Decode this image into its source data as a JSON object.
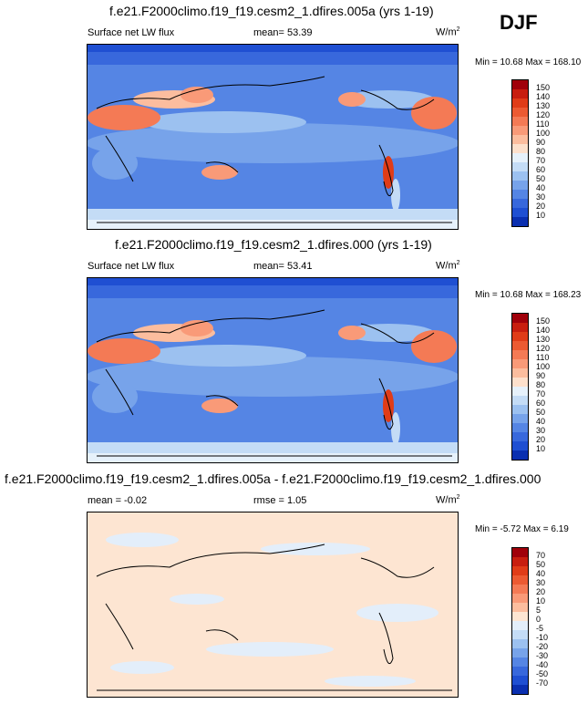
{
  "season": "DJF",
  "panels": [
    {
      "title": "f.e21.F2000climo.f19_f19.cesm2_1.dfires.005a (yrs 1-19)",
      "left_label": "Surface net LW flux",
      "mid_label": "mean=  53.39",
      "units": "W/m",
      "units_sup": "2",
      "minmax": "Min =  10.68 Max = 168.10",
      "colorbar_ticks": [
        "150",
        "140",
        "130",
        "120",
        "110",
        "100",
        "90",
        "80",
        "70",
        "60",
        "50",
        "40",
        "30",
        "20",
        "10"
      ],
      "colorbar_colors": [
        "#a0000a",
        "#c81e0f",
        "#e03c18",
        "#ec5a32",
        "#f47a55",
        "#f99a78",
        "#fcbd9e",
        "#fde0cc",
        "#e6f1fb",
        "#c4dcf6",
        "#9cc1f0",
        "#77a3ea",
        "#5585e4",
        "#3868dc",
        "#1f4fd2",
        "#0a2fb0"
      ]
    },
    {
      "title": "f.e21.F2000climo.f19_f19.cesm2_1.dfires.000 (yrs 1-19)",
      "left_label": "Surface net LW flux",
      "mid_label": "mean=  53.41",
      "units": "W/m",
      "units_sup": "2",
      "minmax": "Min =  10.68 Max = 168.23",
      "colorbar_ticks": [
        "150",
        "140",
        "130",
        "120",
        "110",
        "100",
        "90",
        "80",
        "70",
        "60",
        "50",
        "40",
        "30",
        "20",
        "10"
      ],
      "colorbar_colors": [
        "#a0000a",
        "#c81e0f",
        "#e03c18",
        "#ec5a32",
        "#f47a55",
        "#f99a78",
        "#fcbd9e",
        "#fde0cc",
        "#e6f1fb",
        "#c4dcf6",
        "#9cc1f0",
        "#77a3ea",
        "#5585e4",
        "#3868dc",
        "#1f4fd2",
        "#0a2fb0"
      ]
    },
    {
      "title": "f.e21.F2000climo.f19_f19.cesm2_1.dfires.005a - f.e21.F2000climo.f19_f19.cesm2_1.dfires.000",
      "left_label": "mean =  -0.02",
      "mid_label": "rmse =   1.05",
      "units": "W/m",
      "units_sup": "2",
      "minmax": "Min =  -5.72 Max =   6.19",
      "colorbar_ticks": [
        "70",
        "50",
        "40",
        "30",
        "20",
        "10",
        "5",
        "0",
        "-5",
        "-10",
        "-20",
        "-30",
        "-40",
        "-50",
        "-70"
      ],
      "colorbar_colors": [
        "#a0000a",
        "#c81e0f",
        "#e03c18",
        "#ec5a32",
        "#f47a55",
        "#f99a78",
        "#fcbd9e",
        "#fde5d2",
        "#e3eefa",
        "#c4dcf6",
        "#9cc1f0",
        "#77a3ea",
        "#5585e4",
        "#3868dc",
        "#1f4fd2",
        "#0a2fb0"
      ]
    }
  ],
  "chart_data": [
    {
      "type": "heatmap",
      "title": "f.e21.F2000climo.f19_f19.cesm2_1.dfires.005a (yrs 1-19)",
      "variable": "Surface net LW flux",
      "units": "W/m2",
      "mean": 53.39,
      "min": 10.68,
      "max": 168.1,
      "levels": [
        10,
        20,
        30,
        40,
        50,
        60,
        70,
        80,
        90,
        100,
        110,
        120,
        130,
        140,
        150
      ]
    },
    {
      "type": "heatmap",
      "title": "f.e21.F2000climo.f19_f19.cesm2_1.dfires.000 (yrs 1-19)",
      "variable": "Surface net LW flux",
      "units": "W/m2",
      "mean": 53.41,
      "min": 10.68,
      "max": 168.23,
      "levels": [
        10,
        20,
        30,
        40,
        50,
        60,
        70,
        80,
        90,
        100,
        110,
        120,
        130,
        140,
        150
      ]
    },
    {
      "type": "heatmap",
      "title": "f.e21.F2000climo.f19_f19.cesm2_1.dfires.005a - f.e21.F2000climo.f19_f19.cesm2_1.dfires.000",
      "units": "W/m2",
      "mean": -0.02,
      "rmse": 1.05,
      "min": -5.72,
      "max": 6.19,
      "levels": [
        -70,
        -50,
        -40,
        -30,
        -20,
        -10,
        -5,
        0,
        5,
        10,
        20,
        30,
        40,
        50,
        70
      ]
    }
  ]
}
